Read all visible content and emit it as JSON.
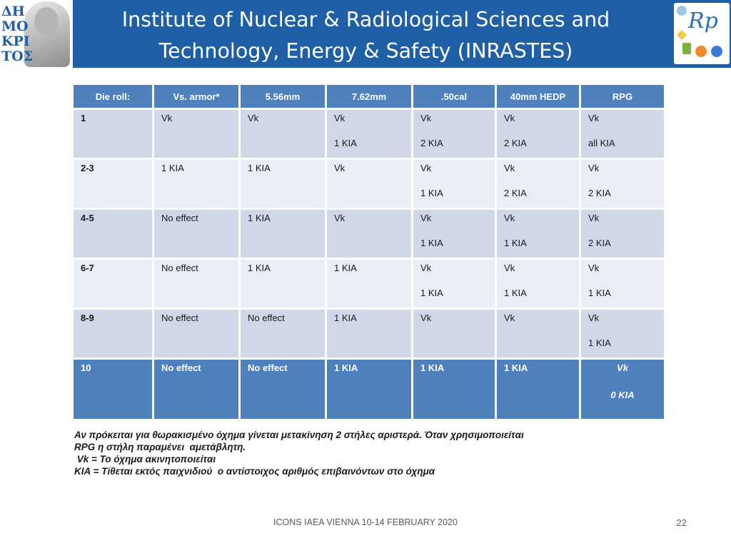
{
  "header": {
    "title_line1": "Institute of Nuclear & Radiological Sciences and",
    "title_line2": "Technology, Energy & Safety (INRASTES)",
    "left_logo_letters": [
      "ΔΗ",
      "ΜΟ",
      "ΚΡΙ",
      "ΤΟΣ"
    ],
    "right_logo_text": "Rp",
    "colors": {
      "header_bg": "#1f5fa6",
      "table_header": "#4f81bd",
      "row_odd": "#d0d8e8",
      "row_even": "#e9edf4"
    }
  },
  "table": {
    "headers": [
      "Die roll:",
      "Vs. armor*",
      "5.56mm",
      "7.62mm",
      ".50cal",
      "40mm HEDP",
      "RPG"
    ],
    "rows": [
      {
        "cells": [
          [
            "1"
          ],
          [
            "Vk"
          ],
          [
            "Vk"
          ],
          [
            "Vk",
            "1 KIA"
          ],
          [
            "Vk",
            "2 KIA"
          ],
          [
            "Vk",
            "2 KIA"
          ],
          [
            "Vk",
            "all KIA"
          ]
        ]
      },
      {
        "cells": [
          [
            "2-3"
          ],
          [
            "1 KIA"
          ],
          [
            "1 KIA"
          ],
          [
            "Vk"
          ],
          [
            "Vk",
            "1 KIA"
          ],
          [
            "Vk",
            "2 KIA"
          ],
          [
            "Vk",
            "2 KIA"
          ]
        ]
      },
      {
        "cells": [
          [
            "4-5"
          ],
          [
            "No effect"
          ],
          [
            "1 KIA"
          ],
          [
            "Vk"
          ],
          [
            "Vk",
            "1 KIA"
          ],
          [
            "Vk",
            "1 KIA"
          ],
          [
            "Vk",
            "2 KIA"
          ]
        ]
      },
      {
        "cells": [
          [
            "6-7"
          ],
          [
            "No effect"
          ],
          [
            "1 KIA"
          ],
          [
            "1 KIA"
          ],
          [
            "Vk",
            "1 KIA"
          ],
          [
            "Vk",
            "1 KIA"
          ],
          [
            "Vk",
            "1 KIA"
          ]
        ]
      },
      {
        "cells": [
          [
            "8-9"
          ],
          [
            "No effect"
          ],
          [
            "No effect"
          ],
          [
            "1 KIA"
          ],
          [
            "Vk"
          ],
          [
            "Vk"
          ],
          [
            "Vk",
            "1 KIA"
          ]
        ]
      },
      {
        "cells": [
          [
            "10"
          ],
          [
            "No effect"
          ],
          [
            "No effect"
          ],
          [
            "1 KIA"
          ],
          [
            "1 KIA"
          ],
          [
            "1 KIA"
          ],
          [
            "Vk",
            "0 KIA"
          ]
        ]
      }
    ]
  },
  "notes": {
    "line1": "Αν πρόκειται για θωρακισμένο όχημα γίνεται μετακίνηση 2 στήλες αριστερά. Όταν χρησιμοποιείται",
    "line2": "RPG η στήλη παραμένει  αμετάβλητη.",
    "line3": " Vk = Το όχημα ακινητοποιείται",
    "line4": "KIA = Τίθεται εκτός παιχνιδιού  ο αντίστοιχος αριθμός επιβαινόντων στο όχημα"
  },
  "footer": {
    "text": "ICONS IAEA VIENNA 10-14 FEBRUARY 2020",
    "page_number": "22"
  }
}
